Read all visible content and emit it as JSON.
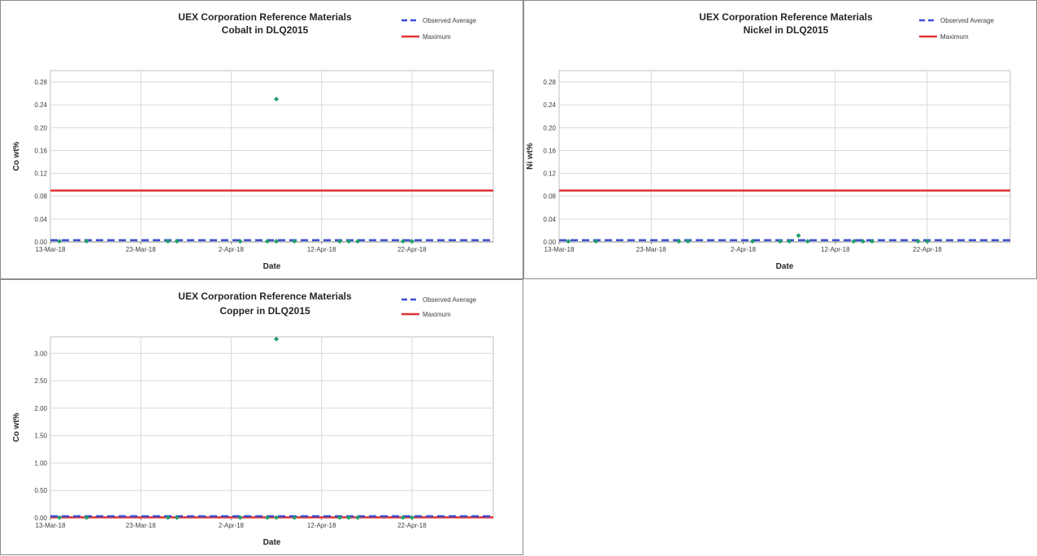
{
  "chart_data": [
    {
      "type": "scatter",
      "title_line1": "UEX Corporation Reference Materials",
      "title_line2": "Cobalt in DLQ2015",
      "xlabel": "Date",
      "ylabel": "Co wt%",
      "xlim": [
        "2018-03-13",
        "2018-05-01"
      ],
      "x_ticks": [
        "13-Mar-18",
        "23-Mar-18",
        "2-Apr-18",
        "12-Apr-18",
        "22-Apr-18"
      ],
      "y_ticks": [
        "0.00",
        "0.04",
        "0.08",
        "0.12",
        "0.16",
        "0.20",
        "0.24",
        "0.28"
      ],
      "ylim": [
        0,
        0.3
      ],
      "grid": true,
      "legend_position": "top-right",
      "legend": [
        "Observed Average",
        "Maximum"
      ],
      "observed_average": 0.003,
      "maximum": 0.09,
      "points": [
        {
          "x": "2018-03-14",
          "y": 0.001
        },
        {
          "x": "2018-03-17",
          "y": 0.001
        },
        {
          "x": "2018-03-26",
          "y": 0.001
        },
        {
          "x": "2018-03-27",
          "y": 0.001
        },
        {
          "x": "2018-04-03",
          "y": 0.001
        },
        {
          "x": "2018-04-06",
          "y": 0.001
        },
        {
          "x": "2018-04-07",
          "y": 0.001
        },
        {
          "x": "2018-04-07",
          "y": 0.25
        },
        {
          "x": "2018-04-09",
          "y": 0.001
        },
        {
          "x": "2018-04-14",
          "y": 0.001
        },
        {
          "x": "2018-04-15",
          "y": 0.001
        },
        {
          "x": "2018-04-16",
          "y": 0.001
        },
        {
          "x": "2018-04-21",
          "y": 0.001
        },
        {
          "x": "2018-04-22",
          "y": 0.001
        }
      ],
      "colors": {
        "average": "#3b4fd1",
        "maximum": "#e03131",
        "points": "#1f9e6d"
      }
    },
    {
      "type": "scatter",
      "title_line1": "UEX Corporation Reference Materials",
      "title_line2": "Nickel in DLQ2015",
      "xlabel": "Date",
      "ylabel": "Ni wt%",
      "xlim": [
        "2018-03-13",
        "2018-05-01"
      ],
      "x_ticks": [
        "13-Mar-18",
        "23-Mar-18",
        "2-Apr-18",
        "12-Apr-18",
        "22-Apr-18"
      ],
      "y_ticks": [
        "0.00",
        "0.04",
        "0.08",
        "0.12",
        "0.16",
        "0.20",
        "0.24",
        "0.28"
      ],
      "ylim": [
        0,
        0.3
      ],
      "grid": true,
      "legend_position": "top-right",
      "legend": [
        "Observed Average",
        "Maximum"
      ],
      "observed_average": 0.003,
      "maximum": 0.09,
      "points": [
        {
          "x": "2018-03-14",
          "y": 0.001
        },
        {
          "x": "2018-03-17",
          "y": 0.001
        },
        {
          "x": "2018-03-26",
          "y": 0.001
        },
        {
          "x": "2018-03-27",
          "y": 0.001
        },
        {
          "x": "2018-04-03",
          "y": 0.001
        },
        {
          "x": "2018-04-06",
          "y": 0.001
        },
        {
          "x": "2018-04-07",
          "y": 0.001
        },
        {
          "x": "2018-04-08",
          "y": 0.011
        },
        {
          "x": "2018-04-09",
          "y": 0.001
        },
        {
          "x": "2018-04-14",
          "y": 0.001
        },
        {
          "x": "2018-04-15",
          "y": 0.001
        },
        {
          "x": "2018-04-16",
          "y": 0.001
        },
        {
          "x": "2018-04-21",
          "y": 0.001
        },
        {
          "x": "2018-04-22",
          "y": 0.001
        }
      ],
      "colors": {
        "average": "#3b4fd1",
        "maximum": "#e03131",
        "points": "#1f9e6d"
      }
    },
    {
      "type": "scatter",
      "title_line1": "UEX Corporation Reference Materials",
      "title_line2": "Copper in DLQ2015",
      "xlabel": "Date",
      "ylabel": "Co wt%",
      "xlim": [
        "2018-03-13",
        "2018-05-01"
      ],
      "x_ticks": [
        "13-Mar-18",
        "23-Mar-18",
        "2-Apr-18",
        "12-Apr-18",
        "22-Apr-18"
      ],
      "y_ticks": [
        "0.00",
        "0.50",
        "1.00",
        "1.50",
        "2.00",
        "2.50",
        "3.00"
      ],
      "ylim": [
        0,
        3.3
      ],
      "grid": true,
      "legend_position": "top-right",
      "legend": [
        "Observed Average",
        "Maximum"
      ],
      "observed_average": 0.03,
      "maximum": 0.01,
      "points": [
        {
          "x": "2018-03-14",
          "y": 0.005
        },
        {
          "x": "2018-03-17",
          "y": 0.005
        },
        {
          "x": "2018-03-26",
          "y": 0.005
        },
        {
          "x": "2018-03-27",
          "y": 0.005
        },
        {
          "x": "2018-04-03",
          "y": 0.005
        },
        {
          "x": "2018-04-06",
          "y": 0.005
        },
        {
          "x": "2018-04-07",
          "y": 0.005
        },
        {
          "x": "2018-04-07",
          "y": 3.26
        },
        {
          "x": "2018-04-09",
          "y": 0.005
        },
        {
          "x": "2018-04-14",
          "y": 0.005
        },
        {
          "x": "2018-04-15",
          "y": 0.005
        },
        {
          "x": "2018-04-16",
          "y": 0.005
        },
        {
          "x": "2018-04-21",
          "y": 0.005
        },
        {
          "x": "2018-04-22",
          "y": 0.005
        }
      ],
      "colors": {
        "average": "#3b4fd1",
        "maximum": "#e03131",
        "points": "#1f9e6d"
      }
    }
  ]
}
